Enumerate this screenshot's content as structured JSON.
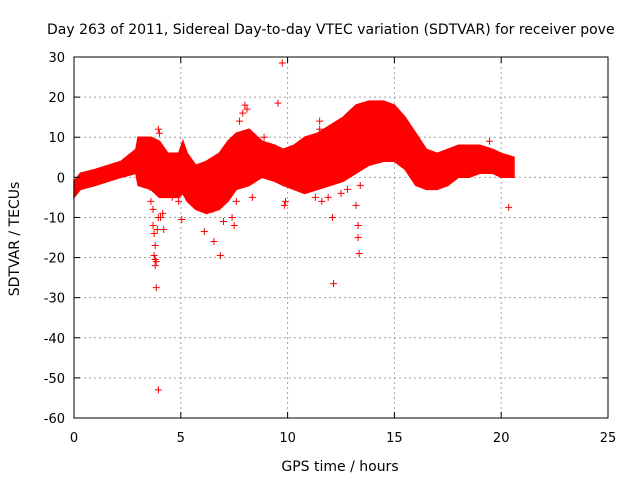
{
  "chart_data": {
    "type": "scatter",
    "title": "Day 263 of 2011, Sidereal Day-to-day VTEC variation (SDTVAR) for receiver pove",
    "xlabel": "GPS time / hours",
    "ylabel": "SDTVAR / TECUs",
    "xlim": [
      0,
      25
    ],
    "ylim": [
      -60,
      30
    ],
    "x_ticks": [
      0,
      5,
      10,
      15,
      20,
      25
    ],
    "y_ticks": [
      30,
      20,
      10,
      0,
      -10,
      -20,
      -30,
      -40,
      -50,
      -60
    ],
    "grid": true,
    "marker": "+",
    "series": [
      {
        "name": "SDTVAR",
        "color": "#ff0000",
        "band_upper": [
          [
            0,
            -1
          ],
          [
            0.3,
            1
          ],
          [
            1.0,
            2
          ],
          [
            1.6,
            3
          ],
          [
            2.2,
            4
          ],
          [
            2.9,
            7
          ],
          [
            3.0,
            10
          ],
          [
            3.6,
            10
          ],
          [
            4.0,
            9
          ],
          [
            4.4,
            6
          ],
          [
            4.9,
            6
          ],
          [
            5.1,
            9
          ],
          [
            5.3,
            6
          ],
          [
            5.7,
            3
          ],
          [
            6.2,
            4
          ],
          [
            6.8,
            6
          ],
          [
            7.2,
            9
          ],
          [
            7.6,
            11
          ],
          [
            8.2,
            12
          ],
          [
            8.8,
            9
          ],
          [
            9.4,
            8
          ],
          [
            9.8,
            7
          ],
          [
            10.3,
            8
          ],
          [
            10.8,
            10
          ],
          [
            11.4,
            11
          ],
          [
            12.0,
            13
          ],
          [
            12.6,
            15
          ],
          [
            13.2,
            18
          ],
          [
            13.8,
            19
          ],
          [
            14.5,
            19
          ],
          [
            15.0,
            18
          ],
          [
            15.5,
            15
          ],
          [
            16.0,
            11
          ],
          [
            16.5,
            7
          ],
          [
            17.0,
            6
          ],
          [
            17.5,
            7
          ],
          [
            18.0,
            8
          ],
          [
            18.5,
            8
          ],
          [
            19.0,
            8
          ],
          [
            19.6,
            7
          ],
          [
            20.0,
            6
          ],
          [
            20.6,
            5
          ]
        ],
        "band_lower": [
          [
            20.6,
            0
          ],
          [
            20.0,
            0
          ],
          [
            19.6,
            1
          ],
          [
            19.0,
            1
          ],
          [
            18.5,
            0
          ],
          [
            18.0,
            0
          ],
          [
            17.5,
            -2
          ],
          [
            17.0,
            -3
          ],
          [
            16.5,
            -3
          ],
          [
            16.0,
            -2
          ],
          [
            15.5,
            2
          ],
          [
            15.0,
            4
          ],
          [
            14.5,
            4
          ],
          [
            13.8,
            3
          ],
          [
            13.2,
            1
          ],
          [
            12.6,
            -1
          ],
          [
            12.0,
            -2
          ],
          [
            11.4,
            -3
          ],
          [
            10.8,
            -4
          ],
          [
            10.3,
            -3
          ],
          [
            9.8,
            -2
          ],
          [
            9.4,
            -1
          ],
          [
            8.8,
            0
          ],
          [
            8.2,
            -2
          ],
          [
            7.6,
            -3
          ],
          [
            7.2,
            -6
          ],
          [
            6.8,
            -8
          ],
          [
            6.2,
            -9
          ],
          [
            5.7,
            -8
          ],
          [
            5.3,
            -6
          ],
          [
            5.1,
            -4
          ],
          [
            4.9,
            -5
          ],
          [
            4.4,
            -5
          ],
          [
            4.0,
            -5
          ],
          [
            3.6,
            -3
          ],
          [
            3.0,
            -2
          ],
          [
            2.9,
            1
          ],
          [
            2.2,
            0
          ],
          [
            1.6,
            -1
          ],
          [
            1.0,
            -2
          ],
          [
            0.3,
            -3
          ],
          [
            0,
            -5
          ]
        ],
        "points": [
          [
            3.25,
            -1.5
          ],
          [
            3.35,
            0.5
          ],
          [
            3.55,
            -2.5
          ],
          [
            3.6,
            -6
          ],
          [
            3.7,
            -8
          ],
          [
            3.7,
            -12
          ],
          [
            3.75,
            -14
          ],
          [
            3.8,
            -17
          ],
          [
            3.75,
            -19.5
          ],
          [
            3.8,
            -20.5
          ],
          [
            3.8,
            -22
          ],
          [
            3.85,
            -21
          ],
          [
            3.9,
            -13
          ],
          [
            3.95,
            -10
          ],
          [
            4.05,
            -10
          ],
          [
            4.15,
            -9
          ],
          [
            4.2,
            -13
          ],
          [
            3.85,
            -27.5
          ],
          [
            3.95,
            12
          ],
          [
            4.0,
            11
          ],
          [
            3.95,
            -53
          ],
          [
            4.6,
            -5
          ],
          [
            4.9,
            -6
          ],
          [
            5.05,
            -10.5
          ],
          [
            6.1,
            -13.5
          ],
          [
            6.55,
            -16
          ],
          [
            6.85,
            -19.5
          ],
          [
            6.3,
            -6
          ],
          [
            6.5,
            -8
          ],
          [
            6.7,
            -5
          ],
          [
            7.0,
            -11
          ],
          [
            7.2,
            -4
          ],
          [
            7.4,
            -10
          ],
          [
            7.5,
            -12
          ],
          [
            7.6,
            -6
          ],
          [
            7.75,
            14
          ],
          [
            7.9,
            16
          ],
          [
            8.0,
            18
          ],
          [
            8.1,
            17
          ],
          [
            8.35,
            -5
          ],
          [
            8.9,
            10
          ],
          [
            9.55,
            18.5
          ],
          [
            9.75,
            28.5
          ],
          [
            9.9,
            -6
          ],
          [
            9.85,
            -7
          ],
          [
            10.1,
            7
          ],
          [
            10.3,
            5
          ],
          [
            11.3,
            -5
          ],
          [
            11.6,
            -6
          ],
          [
            11.9,
            -5
          ],
          [
            12.1,
            -10
          ],
          [
            12.15,
            -26.5
          ],
          [
            12.5,
            -4
          ],
          [
            12.8,
            -3
          ],
          [
            13.2,
            -7
          ],
          [
            13.3,
            -15
          ],
          [
            13.35,
            -19
          ],
          [
            13.3,
            -12
          ],
          [
            13.4,
            -2
          ],
          [
            11.5,
            14
          ],
          [
            11.5,
            12
          ],
          [
            19.45,
            9
          ],
          [
            19.55,
            2
          ],
          [
            20.35,
            -7.5
          ]
        ]
      }
    ]
  }
}
